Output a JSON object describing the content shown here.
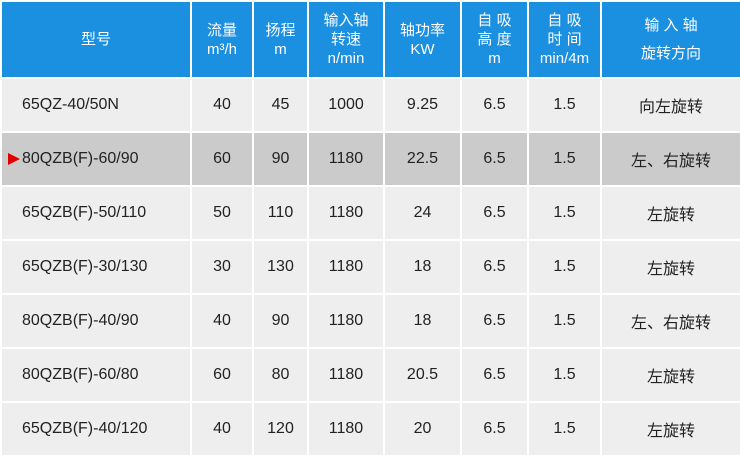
{
  "header": {
    "model": "型号",
    "flow": [
      "流量",
      "m³/h"
    ],
    "head": [
      "扬程",
      "m"
    ],
    "speed": [
      "输入轴",
      "转速",
      "n/min"
    ],
    "power": [
      "轴功率",
      "KW"
    ],
    "suction_height": [
      "自 吸",
      "高 度",
      "m"
    ],
    "suction_time": [
      "自 吸",
      "时 间",
      "min/4m"
    ],
    "rotation": [
      "输 入 轴",
      "旋转方向"
    ]
  },
  "colors": {
    "header": "#1b8fe0",
    "row": "#eeeeee",
    "highlight": "#cbcbcb",
    "marker": "#e00000"
  },
  "rows": [
    {
      "model": "65QZ-40/50N",
      "flow": "40",
      "head": "45",
      "speed": "1000",
      "power": "9.25",
      "height": "6.5",
      "time": "1.5",
      "rotation": "向左旋转"
    },
    {
      "model": "80QZB(F)-60/90",
      "flow": "60",
      "head": "90",
      "speed": "1180",
      "power": "22.5",
      "height": "6.5",
      "time": "1.5",
      "rotation": "左、右旋转",
      "highlighted": true
    },
    {
      "model": "65QZB(F)-50/110",
      "flow": "50",
      "head": "110",
      "speed": "1180",
      "power": "24",
      "height": "6.5",
      "time": "1.5",
      "rotation": "左旋转"
    },
    {
      "model": "65QZB(F)-30/130",
      "flow": "30",
      "head": "130",
      "speed": "1180",
      "power": "18",
      "height": "6.5",
      "time": "1.5",
      "rotation": "左旋转"
    },
    {
      "model": "80QZB(F)-40/90",
      "flow": "40",
      "head": "90",
      "speed": "1180",
      "power": "18",
      "height": "6.5",
      "time": "1.5",
      "rotation": "左、右旋转"
    },
    {
      "model": "80QZB(F)-60/80",
      "flow": "60",
      "head": "80",
      "speed": "1180",
      "power": "20.5",
      "height": "6.5",
      "time": "1.5",
      "rotation": "左旋转"
    },
    {
      "model": "65QZB(F)-40/120",
      "flow": "40",
      "head": "120",
      "speed": "1180",
      "power": "20",
      "height": "6.5",
      "time": "1.5",
      "rotation": "左旋转"
    }
  ]
}
